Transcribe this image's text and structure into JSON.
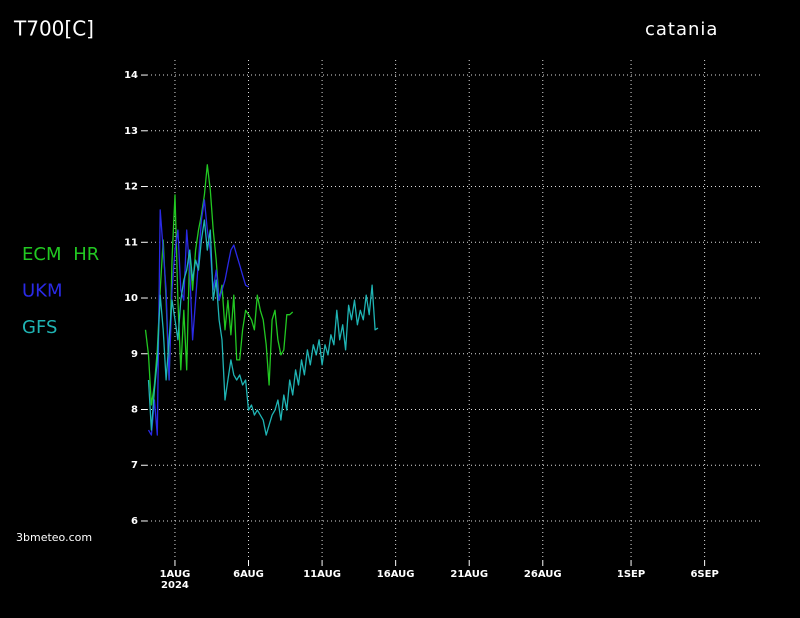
{
  "chart_data": {
    "type": "line",
    "title": "T700[C]",
    "location": "catania",
    "credit": "3bmeteo.com",
    "xlim": [
      -1.9,
      39.9
    ],
    "ylim": [
      5.3,
      14.27
    ],
    "yticks": [
      6,
      7,
      8,
      9,
      10,
      11,
      12,
      13,
      14
    ],
    "xticks": [
      {
        "value": 0,
        "label": "1AUG"
      },
      {
        "value": 5,
        "label": "6AUG"
      },
      {
        "value": 10,
        "label": "11AUG"
      },
      {
        "value": 15,
        "label": "16AUG"
      },
      {
        "value": 20,
        "label": "21AUG"
      },
      {
        "value": 25,
        "label": "26AUG"
      },
      {
        "value": 31,
        "label": "1SEP"
      },
      {
        "value": 36,
        "label": "6SEP"
      }
    ],
    "xtick_sublabel": "2024",
    "grid": true,
    "series": [
      {
        "name": "ECM HR",
        "color": "#22c822",
        "x": [
          -2,
          -1.8,
          -1.6,
          -1.4,
          -1.2,
          -1,
          -0.8,
          -0.6,
          -0.4,
          -0.2,
          0,
          0.2,
          0.4,
          0.6,
          0.8,
          1,
          1.2,
          1.4,
          1.6,
          1.8,
          2,
          2.2,
          2.4,
          2.6,
          2.8,
          3,
          3.2,
          3.4,
          3.6,
          3.8,
          4,
          4.2,
          4.4,
          4.6,
          4.8,
          5,
          5.2,
          5.4,
          5.6,
          5.8,
          6,
          6.2,
          6.4,
          6.6,
          6.8,
          7,
          7.2,
          7.4,
          7.6,
          7.8,
          8
        ],
        "values": [
          9.43,
          8.98,
          8.08,
          8.44,
          9.07,
          10.14,
          11.04,
          9.96,
          8.53,
          10.68,
          11.85,
          9.96,
          8.71,
          9.78,
          8.71,
          10.86,
          10.14,
          10.86,
          11.22,
          11.49,
          11.85,
          12.39,
          11.94,
          11.22,
          10.68,
          9.96,
          10.23,
          9.43,
          9.96,
          9.34,
          10.05,
          8.89,
          8.89,
          9.43,
          9.78,
          9.7,
          9.61,
          9.43,
          10.05,
          9.78,
          9.61,
          9.16,
          8.44,
          9.61,
          9.78,
          9.25,
          8.98,
          9.07,
          9.7,
          9.7,
          9.75
        ]
      },
      {
        "name": "UKM",
        "color": "#2a2ae6",
        "x": [
          -1.8,
          -1.6,
          -1.4,
          -1.2,
          -1,
          -0.8,
          -0.6,
          -0.4,
          -0.2,
          0,
          0.2,
          0.4,
          0.6,
          0.8,
          1,
          1.2,
          1.4,
          1.6,
          1.8,
          2,
          2.2,
          2.4,
          2.6,
          2.8,
          3,
          3.2,
          3.4,
          3.6,
          3.8,
          4,
          4.2,
          4.4,
          4.6,
          4.8,
          5
        ],
        "values": [
          7.63,
          7.54,
          8.17,
          7.54,
          11.58,
          10.86,
          10.14,
          8.53,
          10.14,
          10.86,
          11.22,
          10.14,
          9.96,
          11.22,
          10.5,
          9.25,
          9.96,
          10.68,
          11.4,
          11.76,
          11.22,
          10.86,
          10.14,
          10.5,
          9.96,
          10.14,
          10.32,
          10.59,
          10.86,
          10.95,
          10.77,
          10.59,
          10.41,
          10.23,
          10.2
        ]
      },
      {
        "name": "GFS",
        "color": "#1fb4b4",
        "x": [
          -1.8,
          -1.6,
          -1.4,
          -1.2,
          -1,
          -0.8,
          -0.6,
          -0.4,
          -0.2,
          0,
          0.2,
          0.4,
          0.6,
          0.8,
          1,
          1.2,
          1.4,
          1.6,
          1.8,
          2,
          2.2,
          2.4,
          2.6,
          2.8,
          3,
          3.2,
          3.4,
          3.6,
          3.8,
          4,
          4.2,
          4.4,
          4.6,
          4.8,
          5,
          5.2,
          5.4,
          5.6,
          5.8,
          6,
          6.2,
          6.4,
          6.6,
          6.8,
          7,
          7.2,
          7.4,
          7.6,
          7.8,
          8,
          8.2,
          8.4,
          8.6,
          8.8,
          9,
          9.2,
          9.4,
          9.6,
          9.8,
          10,
          10.2,
          10.4,
          10.6,
          10.8,
          11,
          11.2,
          11.4,
          11.6,
          11.8,
          12,
          12.2,
          12.4,
          12.6,
          12.8,
          13,
          13.2,
          13.4,
          13.6,
          13.8
        ],
        "values": [
          8.53,
          7.63,
          8.35,
          8.89,
          10.05,
          9.43,
          8.53,
          9.25,
          9.96,
          9.61,
          9.25,
          9.96,
          10.32,
          10.5,
          10.86,
          10.32,
          10.68,
          10.5,
          11.04,
          11.4,
          10.86,
          11.22,
          9.96,
          10.32,
          9.61,
          9.25,
          8.17,
          8.53,
          8.89,
          8.62,
          8.53,
          8.62,
          8.44,
          8.53,
          7.99,
          8.08,
          7.9,
          7.99,
          7.9,
          7.81,
          7.54,
          7.72,
          7.9,
          7.99,
          8.17,
          7.81,
          8.26,
          7.99,
          8.53,
          8.26,
          8.71,
          8.44,
          8.89,
          8.62,
          9.07,
          8.8,
          9.16,
          8.98,
          9.25,
          8.8,
          9.16,
          8.98,
          9.34,
          9.16,
          9.78,
          9.25,
          9.52,
          9.07,
          9.87,
          9.61,
          9.96,
          9.52,
          9.78,
          9.61,
          10.05,
          9.7,
          10.23,
          9.43,
          9.46
        ]
      }
    ]
  }
}
